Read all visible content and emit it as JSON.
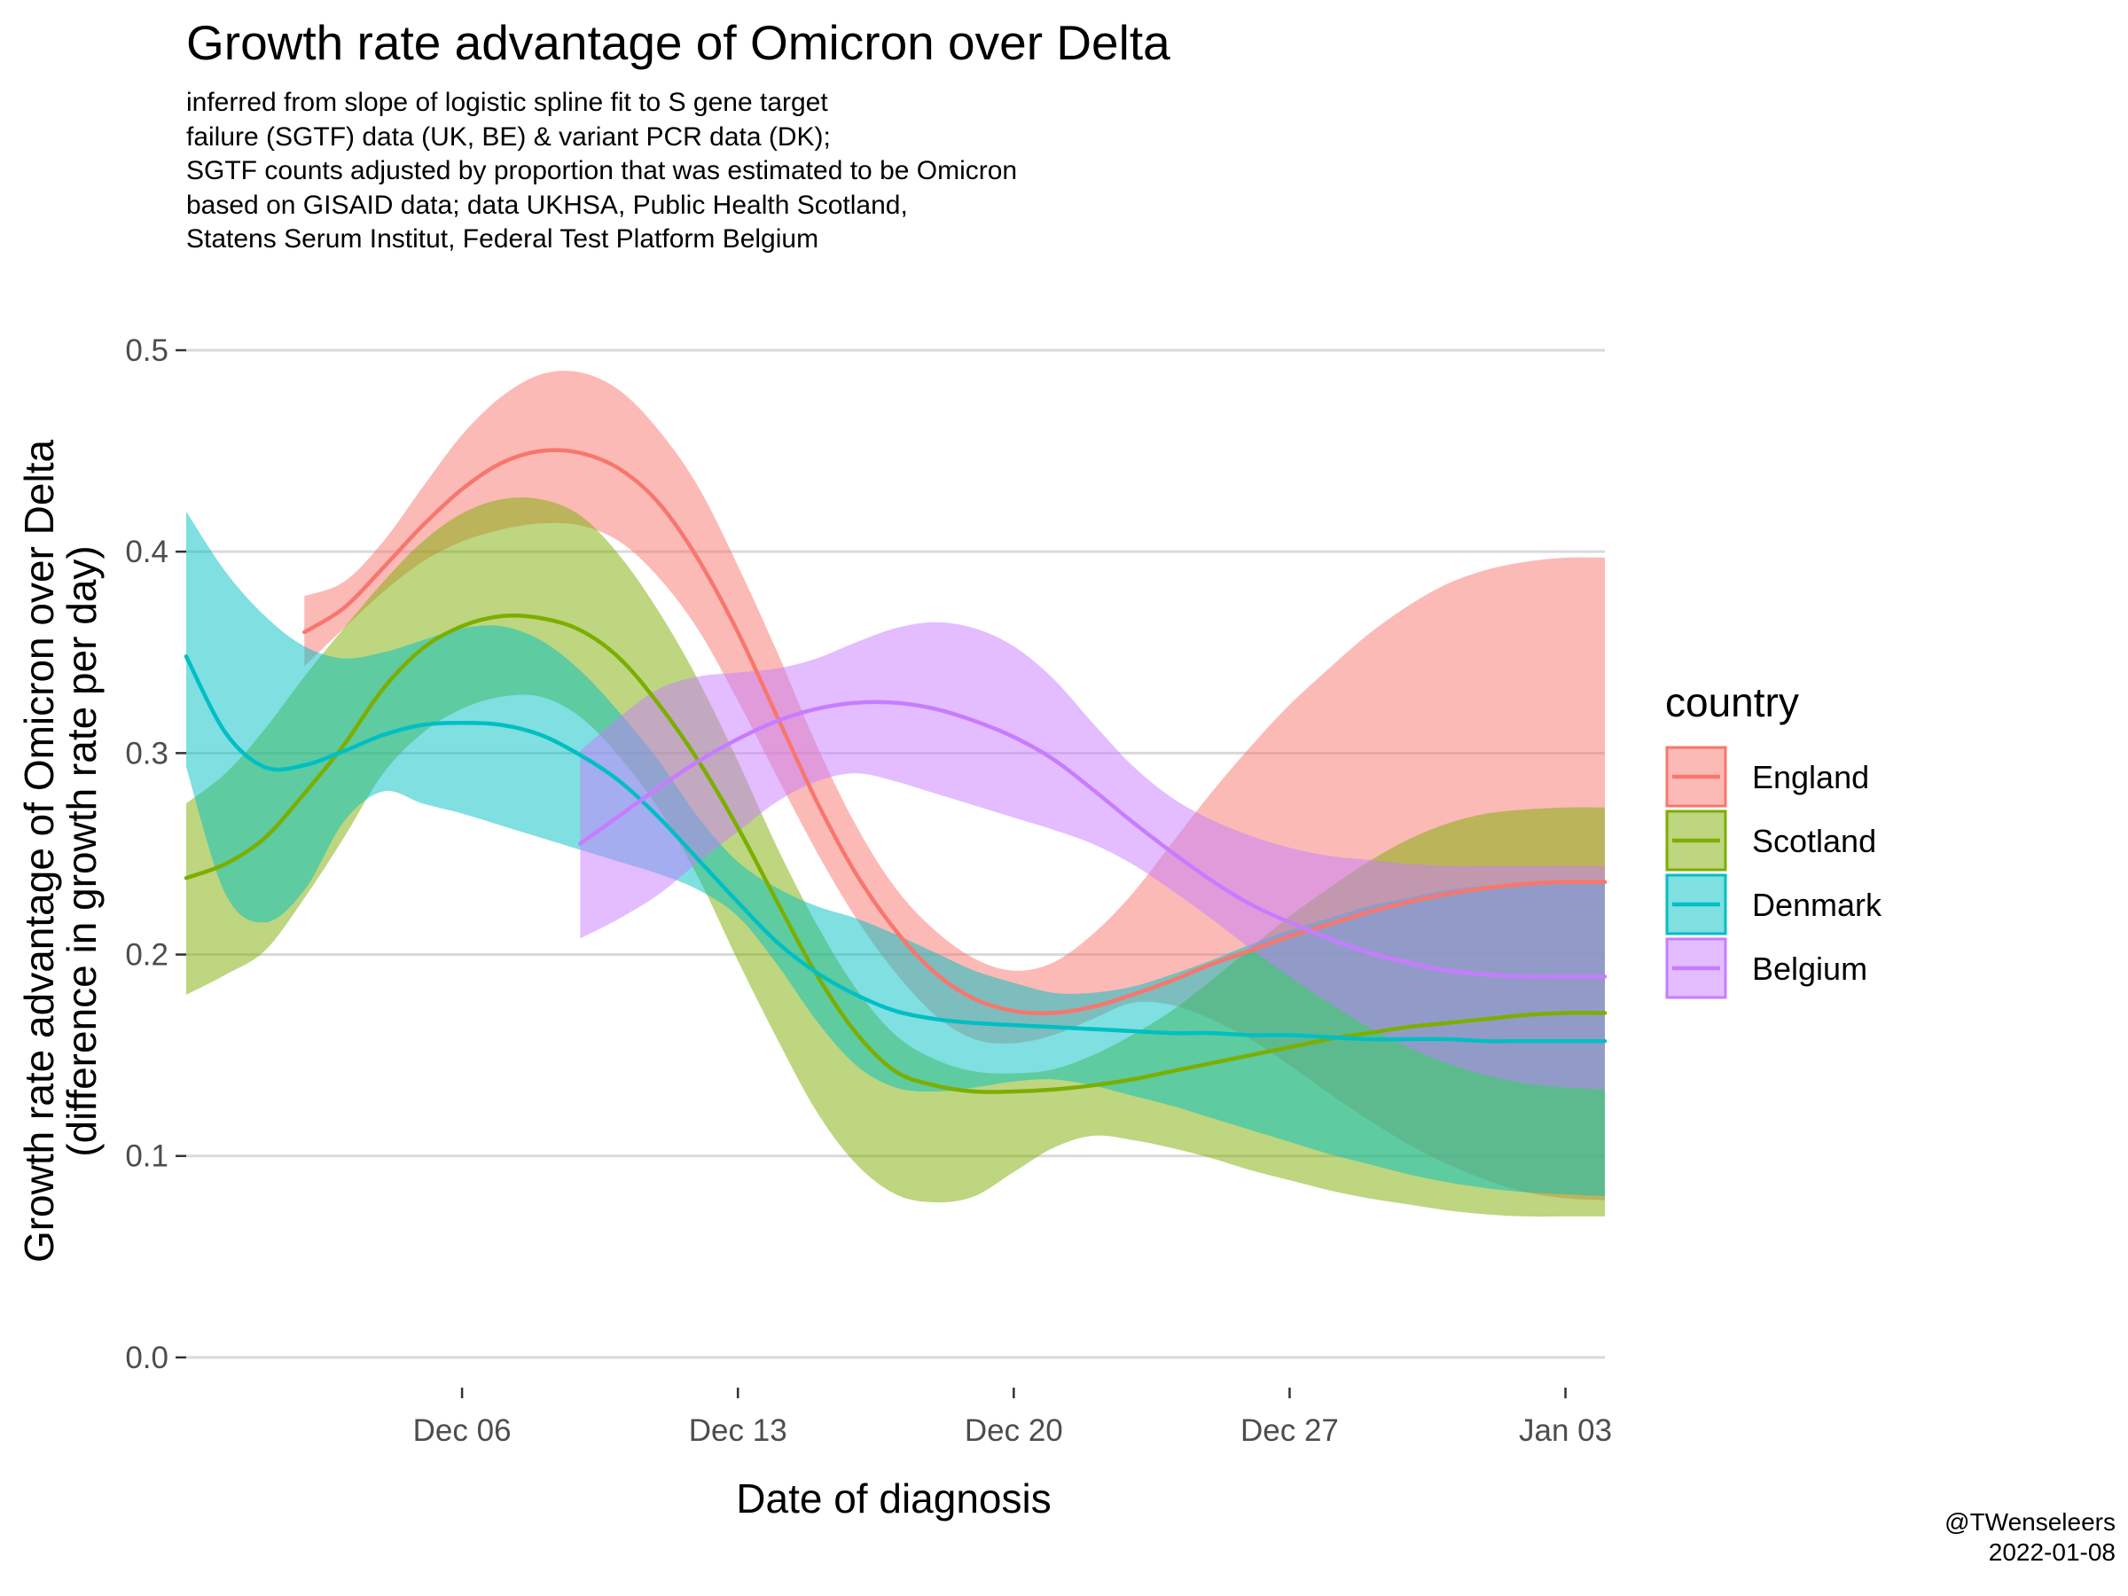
{
  "chart_data": {
    "type": "line",
    "title": "Growth rate advantage of Omicron over Delta",
    "subtitle": [
      "inferred from slope of logistic spline fit to S gene target",
      "failure (SGTF) data (UK, BE) & variant PCR data (DK);",
      "SGTF counts adjusted by proportion that was estimated to be Omicron",
      "based on GISAID data; data UKHSA, Public Health Scotland,",
      "Statens Serum Institut, Federal Test Platform Belgium"
    ],
    "xlabel": "Date of diagnosis",
    "ylabel": "Growth rate advantage of Omicron over Delta",
    "ylabel2": "(difference in growth rate per day)",
    "x_axis": {
      "type": "date",
      "range": [
        "2021-11-29",
        "2022-01-04"
      ],
      "ticks": [
        {
          "date": "2021-12-06",
          "label": "Dec 06"
        },
        {
          "date": "2021-12-13",
          "label": "Dec 13"
        },
        {
          "date": "2021-12-20",
          "label": "Dec 20"
        },
        {
          "date": "2021-12-27",
          "label": "Dec 27"
        },
        {
          "date": "2022-01-03",
          "label": "Jan 03"
        }
      ]
    },
    "y_axis": {
      "range": [
        0,
        0.5
      ],
      "ticks": [
        0.0,
        0.1,
        0.2,
        0.3,
        0.4,
        0.5
      ],
      "tick_labels": [
        "0.0",
        "0.1",
        "0.2",
        "0.3",
        "0.4",
        "0.5"
      ]
    },
    "grid": "horizontal major",
    "legend": {
      "title": "country",
      "position": "right"
    },
    "series": [
      {
        "name": "England",
        "color": "#F8766D",
        "x": [
          "2021-12-02",
          "2021-12-03",
          "2021-12-04",
          "2021-12-05",
          "2021-12-06",
          "2021-12-07",
          "2021-12-08",
          "2021-12-09",
          "2021-12-10",
          "2021-12-11",
          "2021-12-12",
          "2021-12-13",
          "2021-12-14",
          "2021-12-15",
          "2021-12-16",
          "2021-12-17",
          "2021-12-18",
          "2021-12-19",
          "2021-12-20",
          "2021-12-21",
          "2021-12-22",
          "2021-12-23",
          "2021-12-24",
          "2021-12-25",
          "2021-12-26",
          "2021-12-27",
          "2021-12-28",
          "2021-12-29",
          "2021-12-30",
          "2021-12-31",
          "2022-01-01",
          "2022-01-02",
          "2022-01-03",
          "2022-01-04"
        ],
        "y": [
          0.36,
          0.372,
          0.392,
          0.413,
          0.431,
          0.444,
          0.45,
          0.449,
          0.441,
          0.424,
          0.396,
          0.36,
          0.318,
          0.276,
          0.24,
          0.212,
          0.191,
          0.178,
          0.172,
          0.171,
          0.174,
          0.18,
          0.187,
          0.195,
          0.202,
          0.209,
          0.215,
          0.221,
          0.226,
          0.23,
          0.233,
          0.235,
          0.236,
          0.236
        ],
        "lower": [
          0.343,
          0.362,
          0.38,
          0.395,
          0.405,
          0.411,
          0.414,
          0.413,
          0.405,
          0.387,
          0.361,
          0.326,
          0.288,
          0.251,
          0.218,
          0.191,
          0.17,
          0.158,
          0.156,
          0.16,
          0.168,
          0.176,
          0.175,
          0.168,
          0.158,
          0.145,
          0.131,
          0.118,
          0.106,
          0.096,
          0.088,
          0.082,
          0.079,
          0.078
        ],
        "upper": [
          0.378,
          0.385,
          0.405,
          0.432,
          0.458,
          0.477,
          0.488,
          0.489,
          0.48,
          0.46,
          0.432,
          0.393,
          0.35,
          0.304,
          0.264,
          0.233,
          0.212,
          0.198,
          0.192,
          0.196,
          0.21,
          0.23,
          0.255,
          0.28,
          0.303,
          0.324,
          0.342,
          0.359,
          0.373,
          0.384,
          0.391,
          0.395,
          0.397,
          0.397
        ]
      },
      {
        "name": "Scotland",
        "color": "#7CAE00",
        "x": [
          "2021-11-29",
          "2021-11-30",
          "2021-12-01",
          "2021-12-02",
          "2021-12-03",
          "2021-12-04",
          "2021-12-05",
          "2021-12-06",
          "2021-12-07",
          "2021-12-08",
          "2021-12-09",
          "2021-12-10",
          "2021-12-11",
          "2021-12-12",
          "2021-12-13",
          "2021-12-14",
          "2021-12-15",
          "2021-12-16",
          "2021-12-17",
          "2021-12-18",
          "2021-12-19",
          "2021-12-20",
          "2021-12-21",
          "2021-12-22",
          "2021-12-23",
          "2021-12-24",
          "2021-12-25",
          "2021-12-26",
          "2021-12-27",
          "2021-12-28",
          "2021-12-29",
          "2021-12-30",
          "2021-12-31",
          "2022-01-01",
          "2022-01-02",
          "2022-01-03",
          "2022-01-04"
        ],
        "y": [
          0.238,
          0.245,
          0.258,
          0.28,
          0.304,
          0.332,
          0.352,
          0.363,
          0.368,
          0.367,
          0.361,
          0.347,
          0.324,
          0.296,
          0.263,
          0.226,
          0.19,
          0.161,
          0.142,
          0.135,
          0.132,
          0.132,
          0.133,
          0.135,
          0.138,
          0.142,
          0.146,
          0.15,
          0.154,
          0.158,
          0.161,
          0.164,
          0.166,
          0.168,
          0.17,
          0.171,
          0.171
        ],
        "lower": [
          0.18,
          0.19,
          0.202,
          0.228,
          0.258,
          0.29,
          0.31,
          0.322,
          0.328,
          0.328,
          0.318,
          0.298,
          0.272,
          0.238,
          0.197,
          0.158,
          0.122,
          0.096,
          0.081,
          0.077,
          0.08,
          0.092,
          0.104,
          0.11,
          0.108,
          0.104,
          0.099,
          0.093,
          0.088,
          0.083,
          0.079,
          0.076,
          0.073,
          0.071,
          0.07,
          0.07,
          0.07
        ],
        "upper": [
          0.275,
          0.29,
          0.312,
          0.338,
          0.362,
          0.385,
          0.405,
          0.419,
          0.426,
          0.426,
          0.418,
          0.398,
          0.37,
          0.336,
          0.296,
          0.253,
          0.215,
          0.183,
          0.16,
          0.148,
          0.142,
          0.141,
          0.143,
          0.15,
          0.16,
          0.172,
          0.187,
          0.203,
          0.219,
          0.233,
          0.246,
          0.257,
          0.265,
          0.27,
          0.272,
          0.273,
          0.273
        ]
      },
      {
        "name": "Denmark",
        "color": "#00BFC4",
        "x": [
          "2021-11-29",
          "2021-11-30",
          "2021-12-01",
          "2021-12-02",
          "2021-12-03",
          "2021-12-04",
          "2021-12-05",
          "2021-12-06",
          "2021-12-07",
          "2021-12-08",
          "2021-12-09",
          "2021-12-10",
          "2021-12-11",
          "2021-12-12",
          "2021-12-13",
          "2021-12-14",
          "2021-12-15",
          "2021-12-16",
          "2021-12-17",
          "2021-12-18",
          "2021-12-19",
          "2021-12-20",
          "2021-12-21",
          "2021-12-22",
          "2021-12-23",
          "2021-12-24",
          "2021-12-25",
          "2021-12-26",
          "2021-12-27",
          "2021-12-28",
          "2021-12-29",
          "2021-12-30",
          "2021-12-31",
          "2022-01-01",
          "2022-01-02",
          "2022-01-03",
          "2022-01-04"
        ],
        "y": [
          0.348,
          0.31,
          0.293,
          0.294,
          0.301,
          0.309,
          0.314,
          0.315,
          0.314,
          0.309,
          0.299,
          0.286,
          0.268,
          0.247,
          0.226,
          0.206,
          0.191,
          0.18,
          0.172,
          0.168,
          0.166,
          0.165,
          0.164,
          0.163,
          0.162,
          0.161,
          0.161,
          0.16,
          0.16,
          0.159,
          0.158,
          0.158,
          0.158,
          0.157,
          0.157,
          0.157,
          0.157
        ],
        "lower": [
          0.293,
          0.23,
          0.216,
          0.232,
          0.266,
          0.281,
          0.275,
          0.27,
          0.264,
          0.258,
          0.252,
          0.246,
          0.24,
          0.232,
          0.219,
          0.195,
          0.167,
          0.145,
          0.134,
          0.132,
          0.134,
          0.137,
          0.138,
          0.135,
          0.13,
          0.125,
          0.119,
          0.113,
          0.107,
          0.101,
          0.096,
          0.091,
          0.087,
          0.084,
          0.082,
          0.081,
          0.08
        ],
        "upper": [
          0.42,
          0.39,
          0.368,
          0.353,
          0.347,
          0.35,
          0.356,
          0.362,
          0.363,
          0.356,
          0.341,
          0.32,
          0.296,
          0.268,
          0.246,
          0.233,
          0.224,
          0.218,
          0.21,
          0.201,
          0.192,
          0.186,
          0.181,
          0.181,
          0.184,
          0.19,
          0.197,
          0.205,
          0.212,
          0.218,
          0.224,
          0.228,
          0.232,
          0.234,
          0.235,
          0.236,
          0.236
        ]
      },
      {
        "name": "Belgium",
        "color": "#C77CFF",
        "x": [
          "2021-12-09",
          "2021-12-10",
          "2021-12-11",
          "2021-12-12",
          "2021-12-13",
          "2021-12-14",
          "2021-12-15",
          "2021-12-16",
          "2021-12-17",
          "2021-12-18",
          "2021-12-19",
          "2021-12-20",
          "2021-12-21",
          "2021-12-22",
          "2021-12-23",
          "2021-12-24",
          "2021-12-25",
          "2021-12-26",
          "2021-12-27",
          "2021-12-28",
          "2021-12-29",
          "2021-12-30",
          "2021-12-31",
          "2022-01-01",
          "2022-01-02",
          "2022-01-03",
          "2022-01-04"
        ],
        "y": [
          0.255,
          0.269,
          0.283,
          0.296,
          0.307,
          0.316,
          0.322,
          0.325,
          0.325,
          0.322,
          0.316,
          0.308,
          0.297,
          0.282,
          0.266,
          0.251,
          0.237,
          0.225,
          0.216,
          0.208,
          0.201,
          0.196,
          0.192,
          0.19,
          0.189,
          0.189,
          0.189
        ],
        "lower": [
          0.208,
          0.218,
          0.23,
          0.246,
          0.261,
          0.276,
          0.286,
          0.29,
          0.286,
          0.28,
          0.274,
          0.268,
          0.262,
          0.255,
          0.245,
          0.232,
          0.218,
          0.203,
          0.189,
          0.176,
          0.164,
          0.154,
          0.146,
          0.14,
          0.136,
          0.134,
          0.133
        ],
        "upper": [
          0.301,
          0.318,
          0.332,
          0.338,
          0.34,
          0.342,
          0.347,
          0.355,
          0.362,
          0.365,
          0.362,
          0.353,
          0.337,
          0.315,
          0.294,
          0.278,
          0.267,
          0.259,
          0.253,
          0.249,
          0.247,
          0.245,
          0.244,
          0.244,
          0.244,
          0.244,
          0.244
        ]
      }
    ],
    "credit": [
      "@TWenseleers",
      "2022-01-08"
    ]
  }
}
